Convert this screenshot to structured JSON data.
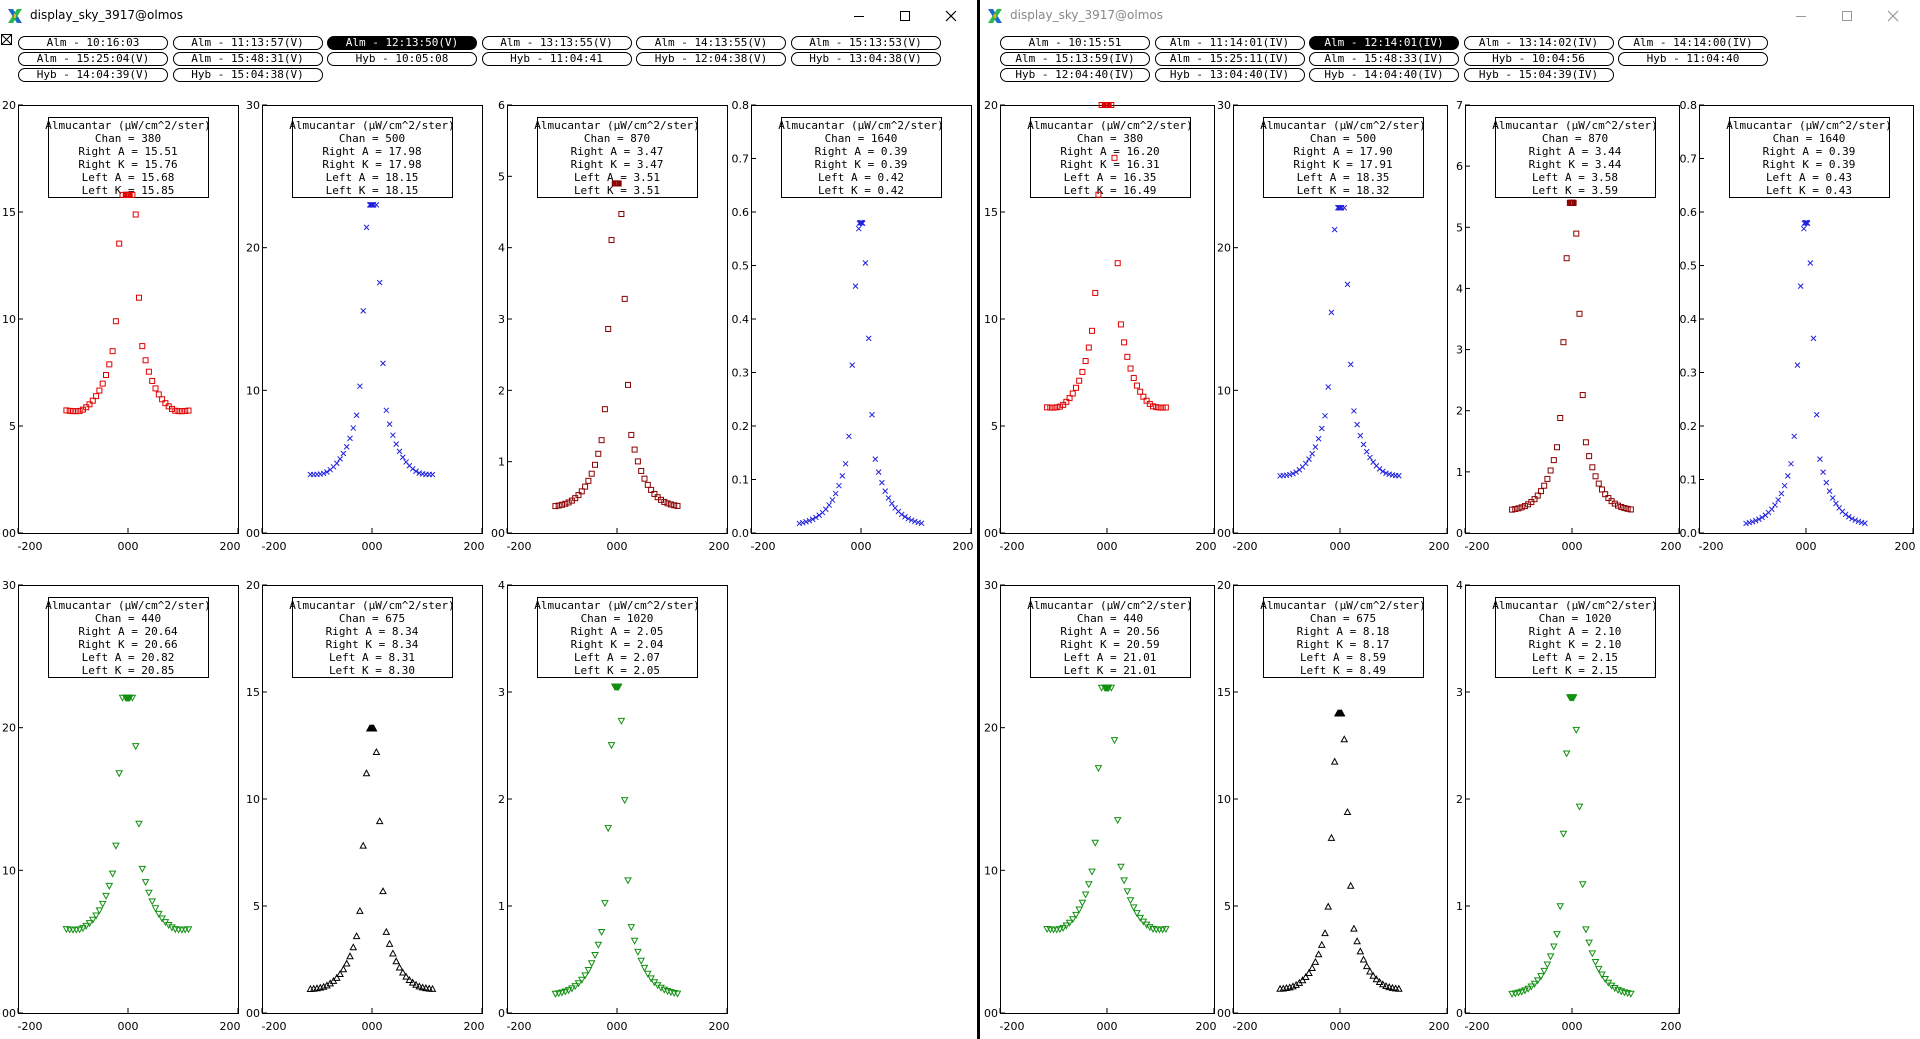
{
  "windows": [
    {
      "id": "left",
      "title": "display_sky_3917@olmos",
      "active": true,
      "buttons": [
        {
          "label": "Alm - 10:16:03",
          "selected": false
        },
        {
          "label": "Alm - 11:13:57(V)",
          "selected": false
        },
        {
          "label": "Alm - 12:13:50(V)",
          "selected": true
        },
        {
          "label": "Alm - 13:13:55(V)",
          "selected": false
        },
        {
          "label": "Alm - 14:13:55(V)",
          "selected": false
        },
        {
          "label": "Alm - 15:13:53(V)",
          "selected": false
        },
        {
          "label": "Alm - 15:25:04(V)",
          "selected": false
        },
        {
          "label": "Alm - 15:48:31(V)",
          "selected": false
        },
        {
          "label": "Hyb - 10:05:08",
          "selected": false
        },
        {
          "label": "Hyb - 11:04:41",
          "selected": false
        },
        {
          "label": "Hyb - 12:04:38(V)",
          "selected": false
        },
        {
          "label": "Hyb - 13:04:38(V)",
          "selected": false
        },
        {
          "label": "Hyb - 14:04:39(V)",
          "selected": false
        },
        {
          "label": "Hyb - 15:04:38(V)",
          "selected": false
        }
      ],
      "panels": [
        {
          "chan": "380",
          "right_a": "15.51",
          "right_k": "15.76",
          "left_a": "15.68",
          "left_k": "15.85",
          "yticks": [
            "20",
            "15",
            "10",
            "5",
            "00"
          ],
          "ymax": 20,
          "peak": 15.8,
          "base": 5.6,
          "min": 5.3,
          "color": "#e00000",
          "marker": "square"
        },
        {
          "chan": "500",
          "right_a": "17.98",
          "right_k": "17.98",
          "left_a": "18.15",
          "left_k": "18.15",
          "yticks": [
            "30",
            "20",
            "10",
            "00"
          ],
          "ymax": 30,
          "peak": 23.0,
          "base": 3.9,
          "min": 3.6,
          "color": "#2222dd",
          "marker": "x"
        },
        {
          "chan": "870",
          "right_a": "3.47",
          "right_k": "3.47",
          "left_a": "3.51",
          "left_k": "3.51",
          "yticks": [
            "6",
            "5",
            "4",
            "3",
            "2",
            "1",
            "00"
          ],
          "ymax": 6,
          "peak": 4.9,
          "base": 0.33,
          "min": 0.31,
          "color": "#8b0000",
          "marker": "square"
        },
        {
          "chan": "1640",
          "right_a": "0.39",
          "right_k": "0.39",
          "left_a": "0.42",
          "left_k": "0.42",
          "yticks": [
            "0.8",
            "0.7",
            "0.6",
            "0.5",
            "0.4",
            "0.3",
            "0.2",
            "0.1",
            "0.0"
          ],
          "ymax": 0.8,
          "peak": 0.58,
          "base": 0.012,
          "min": 0.012,
          "color": "#2222dd",
          "marker": "x"
        },
        {
          "chan": "440",
          "right_a": "20.64",
          "right_k": "20.66",
          "left_a": "20.82",
          "left_k": "20.85",
          "yticks": [
            "30",
            "20",
            "10",
            "00"
          ],
          "ymax": 30,
          "peak": 22.1,
          "base": 5.7,
          "min": 5.3,
          "color": "#109010",
          "marker": "tri-down"
        },
        {
          "chan": "675",
          "right_a": "8.34",
          "right_k": "8.34",
          "left_a": "8.31",
          "left_k": "8.30",
          "yticks": [
            "20",
            "15",
            "10",
            "5",
            "00"
          ],
          "ymax": 20,
          "peak": 13.3,
          "base": 1.0,
          "min": 0.9,
          "color": "#000000",
          "marker": "tri-up"
        },
        {
          "chan": "1020",
          "right_a": "2.05",
          "right_k": "2.04",
          "left_a": "2.07",
          "left_k": "2.05",
          "yticks": [
            "4",
            "3",
            "2",
            "1",
            "0"
          ],
          "ymax": 4,
          "peak": 3.05,
          "base": 0.15,
          "min": 0.14,
          "color": "#109010",
          "marker": "tri-down"
        }
      ]
    },
    {
      "id": "right",
      "title": "display_sky_3917@olmos",
      "active": false,
      "buttons": [
        {
          "label": "Alm - 10:15:51",
          "selected": false
        },
        {
          "label": "Alm - 11:14:01(IV)",
          "selected": false
        },
        {
          "label": "Alm - 12:14:01(IV)",
          "selected": true
        },
        {
          "label": "Alm - 13:14:02(IV)",
          "selected": false
        },
        {
          "label": "Alm - 14:14:00(IV)",
          "selected": false
        },
        {
          "label": "Alm - 15:13:59(IV)",
          "selected": false
        },
        {
          "label": "Alm - 15:25:11(IV)",
          "selected": false
        },
        {
          "label": "Alm - 15:48:33(IV)",
          "selected": false
        },
        {
          "label": "Hyb - 10:04:56",
          "selected": false
        },
        {
          "label": "Hyb - 11:04:40",
          "selected": false
        },
        {
          "label": "Hyb - 12:04:40(IV)",
          "selected": false
        },
        {
          "label": "Hyb - 13:04:40(IV)",
          "selected": false
        },
        {
          "label": "Hyb - 14:04:40(IV)",
          "selected": false
        },
        {
          "label": "Hyb - 15:04:39(IV)",
          "selected": false
        }
      ],
      "panels": [
        {
          "chan": "380",
          "right_a": "16.20",
          "right_k": "16.31",
          "left_a": "16.35",
          "left_k": "16.49",
          "yticks": [
            "20",
            "15",
            "10",
            "5",
            "00"
          ],
          "ymax": 20,
          "peak": 20.0,
          "base": 5.7,
          "min": 5.4,
          "color": "#e00000",
          "marker": "square"
        },
        {
          "chan": "500",
          "right_a": "17.90",
          "right_k": "17.91",
          "left_a": "18.35",
          "left_k": "18.32",
          "yticks": [
            "30",
            "20",
            "10",
            "00"
          ],
          "ymax": 30,
          "peak": 22.8,
          "base": 3.8,
          "min": 3.6,
          "color": "#2222dd",
          "marker": "x"
        },
        {
          "chan": "870",
          "right_a": "3.44",
          "right_k": "3.44",
          "left_a": "3.58",
          "left_k": "3.59",
          "yticks": [
            "7",
            "6",
            "5",
            "4",
            "3",
            "2",
            "1",
            "0"
          ],
          "ymax": 7,
          "peak": 5.4,
          "base": 0.33,
          "min": 0.31,
          "color": "#8b0000",
          "marker": "square"
        },
        {
          "chan": "1640",
          "right_a": "0.39",
          "right_k": "0.39",
          "left_a": "0.43",
          "left_k": "0.43",
          "yticks": [
            "0.8",
            "0.7",
            "0.6",
            "0.5",
            "0.4",
            "0.3",
            "0.2",
            "0.1",
            "0.0"
          ],
          "ymax": 0.8,
          "peak": 0.58,
          "base": 0.012,
          "min": 0.012,
          "color": "#2222dd",
          "marker": "x"
        },
        {
          "chan": "440",
          "right_a": "20.56",
          "right_k": "20.59",
          "left_a": "21.01",
          "left_k": "21.01",
          "yticks": [
            "30",
            "20",
            "10",
            "00"
          ],
          "ymax": 30,
          "peak": 22.8,
          "base": 5.7,
          "min": 5.3,
          "color": "#109010",
          "marker": "tri-down"
        },
        {
          "chan": "675",
          "right_a": "8.18",
          "right_k": "8.17",
          "left_a": "8.59",
          "left_k": "8.49",
          "yticks": [
            "20",
            "15",
            "10",
            "5",
            "00"
          ],
          "ymax": 20,
          "peak": 14.0,
          "base": 1.0,
          "min": 0.9,
          "color": "#000000",
          "marker": "tri-up"
        },
        {
          "chan": "1020",
          "right_a": "2.10",
          "right_k": "2.10",
          "left_a": "2.15",
          "left_k": "2.15",
          "yticks": [
            "4",
            "3",
            "2",
            "1",
            "0"
          ],
          "ymax": 4,
          "peak": 2.95,
          "base": 0.15,
          "min": 0.14,
          "color": "#109010",
          "marker": "tri-down"
        }
      ]
    }
  ],
  "panel_text": {
    "heading": "Almucantar (µW/cm^2/ster)",
    "chan_prefix": "Chan = ",
    "right_a_prefix": "Right A = ",
    "right_k_prefix": "Right K = ",
    "left_a_prefix": "Left A = ",
    "left_k_prefix": "Left K = "
  },
  "x_axis": {
    "min": -200,
    "max": 200,
    "ticks": [
      "-200",
      "000",
      "200"
    ]
  },
  "icons": {
    "logo": "x-window-logo-icon",
    "minimize": "minimize-icon",
    "maximize": "maximize-icon",
    "close": "close-icon",
    "tabbar": "tab-icon"
  }
}
